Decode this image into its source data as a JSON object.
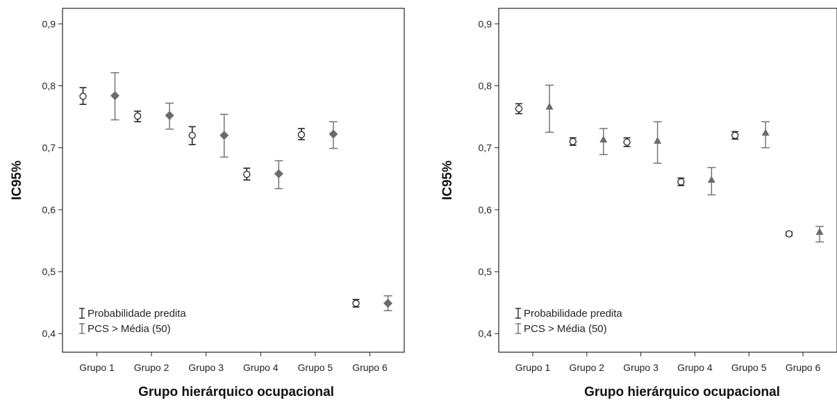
{
  "chart_data": [
    {
      "type": "scatter",
      "xlabel": "Grupo hierárquico ocupacional",
      "ylabel": "IC95%",
      "ylim": [
        0.4,
        0.9
      ],
      "yticks": [
        "0,9",
        "0,8",
        "0,7",
        "0,6",
        "0,5",
        "0,4"
      ],
      "categories": [
        "Grupo 1",
        "Grupo 2",
        "Grupo 3",
        "Grupo 4",
        "Grupo 5",
        "Grupo 6"
      ],
      "grid": false,
      "legend_position": "bottom-left",
      "series": [
        {
          "name": "Probabilidade predita",
          "marker": "circle",
          "color": "#222222",
          "values": [
            0.783,
            0.751,
            0.72,
            0.657,
            0.721,
            0.449
          ],
          "lower": [
            0.77,
            0.742,
            0.705,
            0.648,
            0.713,
            0.443
          ],
          "upper": [
            0.797,
            0.759,
            0.734,
            0.667,
            0.731,
            0.455
          ]
        },
        {
          "name": "PCS > Média (50)",
          "marker": "diamond",
          "color": "#6b6b6b",
          "values": [
            0.784,
            0.752,
            0.72,
            0.658,
            0.722,
            0.449
          ],
          "lower": [
            0.745,
            0.73,
            0.685,
            0.634,
            0.699,
            0.437
          ],
          "upper": [
            0.821,
            0.772,
            0.754,
            0.679,
            0.742,
            0.461
          ]
        }
      ]
    },
    {
      "type": "scatter",
      "xlabel": "Grupo hierárquico ocupacional",
      "ylabel": "IC95%",
      "ylim": [
        0.4,
        0.9
      ],
      "yticks": [
        "0,9",
        "0,8",
        "0,7",
        "0,6",
        "0,5",
        "0,4"
      ],
      "categories": [
        "Grupo 1",
        "Grupo 2",
        "Grupo 3",
        "Grupo 4",
        "Grupo 5",
        "Grupo 6"
      ],
      "grid": false,
      "legend_position": "bottom-left",
      "series": [
        {
          "name": "Probabilidade predita",
          "marker": "circle",
          "color": "#222222",
          "values": [
            0.763,
            0.71,
            0.709,
            0.645,
            0.72,
            0.561
          ],
          "lower": [
            0.755,
            0.704,
            0.702,
            0.639,
            0.714,
            0.558
          ],
          "upper": [
            0.771,
            0.716,
            0.716,
            0.651,
            0.726,
            0.564
          ]
        },
        {
          "name": "PCS > Média (50)",
          "marker": "triangle",
          "color": "#6b6b6b",
          "values": [
            0.766,
            0.713,
            0.711,
            0.648,
            0.724,
            0.564
          ],
          "lower": [
            0.725,
            0.689,
            0.675,
            0.624,
            0.7,
            0.548
          ],
          "upper": [
            0.801,
            0.731,
            0.742,
            0.668,
            0.742,
            0.573
          ]
        }
      ]
    }
  ]
}
